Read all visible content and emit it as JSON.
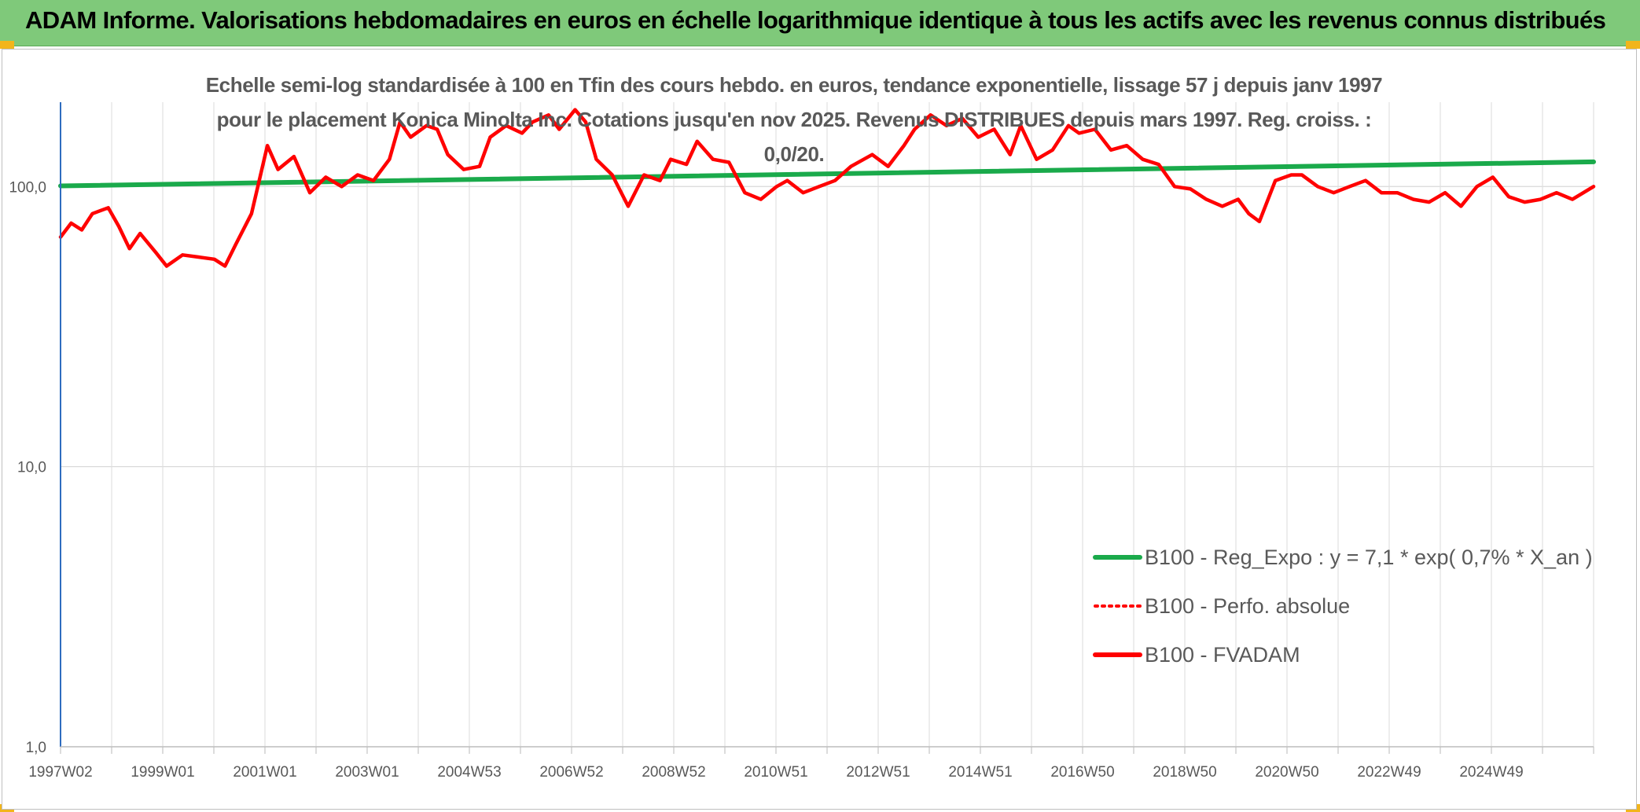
{
  "banner": {
    "title": "ADAM Informe. Valorisations hebdomadaires en euros en échelle logarithmique identique à tous les actifs avec les revenus connus distribués"
  },
  "chart_data": {
    "type": "line",
    "title": "Echelle semi-log standardisée à 100 en Tfin des cours hebdo. en euros, tendance exponentielle, lissage 57 j depuis janv 1997 pour le placement Konica Minolta Inc. Cotations jusqu'en nov 2025. Revenus DISTRIBUES depuis mars 1997. Reg. croiss. : 0,0/20.",
    "y_scale": "log",
    "ylim": [
      1,
      200
    ],
    "y_ticks": [
      1,
      10,
      100
    ],
    "y_tick_labels": [
      "1,0",
      "10,0",
      "100,0"
    ],
    "x_tick_labels": [
      "1997W02",
      "1999W01",
      "2001W01",
      "2003W01",
      "2004W53",
      "2006W52",
      "2008W52",
      "2010W51",
      "2012W51",
      "2014W51",
      "2016W50",
      "2018W50",
      "2020W50",
      "2022W49",
      "2024W49"
    ],
    "x_range_years": [
      1997.0,
      2025.9
    ],
    "grid": true,
    "legend_position": "bottom-right",
    "series": [
      {
        "name": "B100 - Reg_Expo : y = 7,1 * exp( 0,7% *  X_an )",
        "color": "#1aaa4b",
        "style": "solid",
        "x": [
          1997.0,
          2025.9
        ],
        "values": [
          100.5,
          122.5
        ]
      },
      {
        "name": "B100 - Perfo. absolue",
        "color": "#ff0000",
        "style": "dotted",
        "x": [],
        "values": []
      },
      {
        "name": "B100 - FVADAM",
        "color": "#ff0000",
        "style": "solid",
        "x": [
          1997.0,
          1997.2,
          1997.4,
          1997.6,
          1997.9,
          1998.1,
          1998.3,
          1998.5,
          1998.8,
          1999.0,
          1999.3,
          1999.6,
          1999.9,
          2000.1,
          2000.3,
          2000.6,
          2000.9,
          2001.1,
          2001.4,
          2001.7,
          2002.0,
          2002.3,
          2002.6,
          2002.9,
          2003.2,
          2003.4,
          2003.6,
          2003.9,
          2004.1,
          2004.3,
          2004.6,
          2004.9,
          2005.1,
          2005.4,
          2005.7,
          2005.9,
          2006.2,
          2006.4,
          2006.7,
          2006.9,
          2007.1,
          2007.4,
          2007.7,
          2008.0,
          2008.3,
          2008.5,
          2008.8,
          2009.0,
          2009.3,
          2009.6,
          2009.9,
          2010.2,
          2010.5,
          2010.7,
          2011.0,
          2011.3,
          2011.6,
          2011.9,
          2012.3,
          2012.6,
          2012.9,
          2013.1,
          2013.4,
          2013.7,
          2014.0,
          2014.3,
          2014.6,
          2014.9,
          2015.1,
          2015.4,
          2015.7,
          2016.0,
          2016.2,
          2016.5,
          2016.8,
          2017.1,
          2017.4,
          2017.7,
          2018.0,
          2018.3,
          2018.6,
          2018.9,
          2019.2,
          2019.4,
          2019.6,
          2019.9,
          2020.2,
          2020.4,
          2020.7,
          2021.0,
          2021.3,
          2021.6,
          2021.9,
          2022.2,
          2022.5,
          2022.8,
          2023.1,
          2023.4,
          2023.7,
          2024.0,
          2024.3,
          2024.6,
          2024.9,
          2025.2,
          2025.5,
          2025.9
        ],
        "values": [
          66,
          74,
          70,
          80,
          84,
          72,
          60,
          68,
          58,
          52,
          57,
          56,
          55,
          52,
          62,
          80,
          140,
          115,
          128,
          95,
          108,
          100,
          110,
          105,
          125,
          170,
          150,
          165,
          160,
          130,
          115,
          118,
          150,
          165,
          155,
          170,
          180,
          160,
          188,
          170,
          125,
          110,
          85,
          110,
          105,
          125,
          120,
          145,
          125,
          122,
          95,
          90,
          100,
          105,
          95,
          100,
          105,
          118,
          130,
          118,
          140,
          160,
          180,
          165,
          175,
          150,
          160,
          130,
          165,
          125,
          135,
          165,
          155,
          160,
          135,
          140,
          125,
          120,
          100,
          98,
          90,
          85,
          90,
          80,
          75,
          105,
          110,
          110,
          100,
          95,
          100,
          105,
          95,
          95,
          90,
          88,
          95,
          85,
          100,
          108,
          92,
          88,
          90,
          95,
          90,
          100
        ]
      }
    ]
  }
}
